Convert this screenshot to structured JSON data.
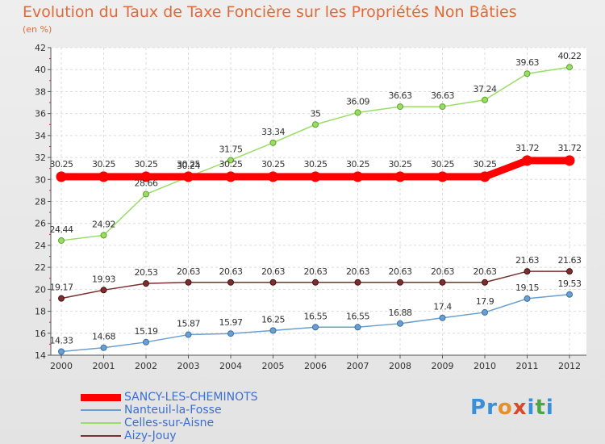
{
  "title": "Evolution du Taux de Taxe Foncière sur les Propriétés Non Bâties",
  "subtitle": "(en %)",
  "logo": {
    "text": "Proxiti",
    "letters": [
      "P",
      "r",
      "o",
      "x",
      "i",
      "t",
      "i"
    ],
    "colors": [
      "#3a8fd6",
      "#3a8fd6",
      "#e6902a",
      "#d84a2a",
      "#3a8fd6",
      "#4aa844",
      "#3a8fd6"
    ]
  },
  "chart_data": {
    "type": "line",
    "title": "Evolution du Taux de Taxe Foncière sur les Propriétés Non Bâties",
    "ylabel": "(en %)",
    "xlabel": "",
    "categories": [
      "2000",
      "2001",
      "2002",
      "2003",
      "2004",
      "2005",
      "2006",
      "2007",
      "2008",
      "2009",
      "2010",
      "2011",
      "2012"
    ],
    "ylim": [
      14,
      42
    ],
    "yticks": [
      14,
      16,
      18,
      20,
      22,
      24,
      26,
      28,
      30,
      32,
      34,
      36,
      38,
      40,
      42
    ],
    "grid": true,
    "legend_position": "bottom-left",
    "series": [
      {
        "name": "SANCY-LES-CHEMINOTS",
        "color": "#ff0000",
        "labels": [
          "30.25",
          "30.25",
          "30.25",
          "30.25",
          "30.25",
          "30.25",
          "30.25",
          "30.25",
          "30.25",
          "30.25",
          "30.25",
          "31.72",
          "31.72"
        ],
        "values": [
          30.25,
          30.25,
          30.25,
          30.25,
          30.25,
          30.25,
          30.25,
          30.25,
          30.25,
          30.25,
          30.25,
          31.72,
          31.72
        ]
      },
      {
        "name": "Nanteuil-la-Fosse",
        "color": "#6b9fcf",
        "labels": [
          "14.33",
          "14.68",
          "15.19",
          "15.87",
          "15.97",
          "16.25",
          "16.55",
          "16.55",
          "16.88",
          "17.4",
          "17.9",
          "19.15",
          "19.53"
        ],
        "values": [
          14.33,
          14.68,
          15.19,
          15.87,
          15.97,
          16.25,
          16.55,
          16.55,
          16.88,
          17.4,
          17.9,
          19.15,
          19.53
        ]
      },
      {
        "name": "Celles-sur-Aisne",
        "color": "#99dd66",
        "labels": [
          "24.44",
          "24.92",
          "28.66",
          "30.24",
          "31.75",
          "33.34",
          "35",
          "36.09",
          "36.63",
          "36.63",
          "37.24",
          "39.63",
          "40.22"
        ],
        "values": [
          24.44,
          24.92,
          28.66,
          30.24,
          31.75,
          33.34,
          35,
          36.09,
          36.63,
          36.63,
          37.24,
          39.63,
          40.22
        ]
      },
      {
        "name": "Aizy-Jouy",
        "color": "#7a3030",
        "labels": [
          "19.17",
          "19.93",
          "20.53",
          "20.63",
          "20.63",
          "20.63",
          "20.63",
          "20.63",
          "20.63",
          "20.63",
          "20.63",
          "21.63",
          "21.63"
        ],
        "values": [
          19.17,
          19.93,
          20.53,
          20.63,
          20.63,
          20.63,
          20.63,
          20.63,
          20.63,
          20.63,
          20.63,
          21.63,
          21.63
        ]
      }
    ]
  }
}
